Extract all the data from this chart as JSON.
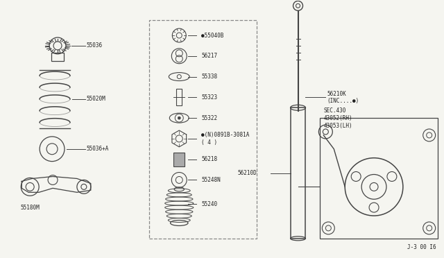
{
  "bg_color": "#f5f5f0",
  "line_color": "#444444",
  "text_color": "#222222",
  "fig_width": 6.4,
  "fig_height": 3.72,
  "dpi": 100,
  "footer_text": "J-3 00 I6",
  "parts_mid_labels": [
    "●55040B",
    "56217",
    "55338",
    "55323",
    "55322",
    "●(N)0891B-3081A\n( 4 )",
    "56218",
    "55248N",
    "55240"
  ]
}
